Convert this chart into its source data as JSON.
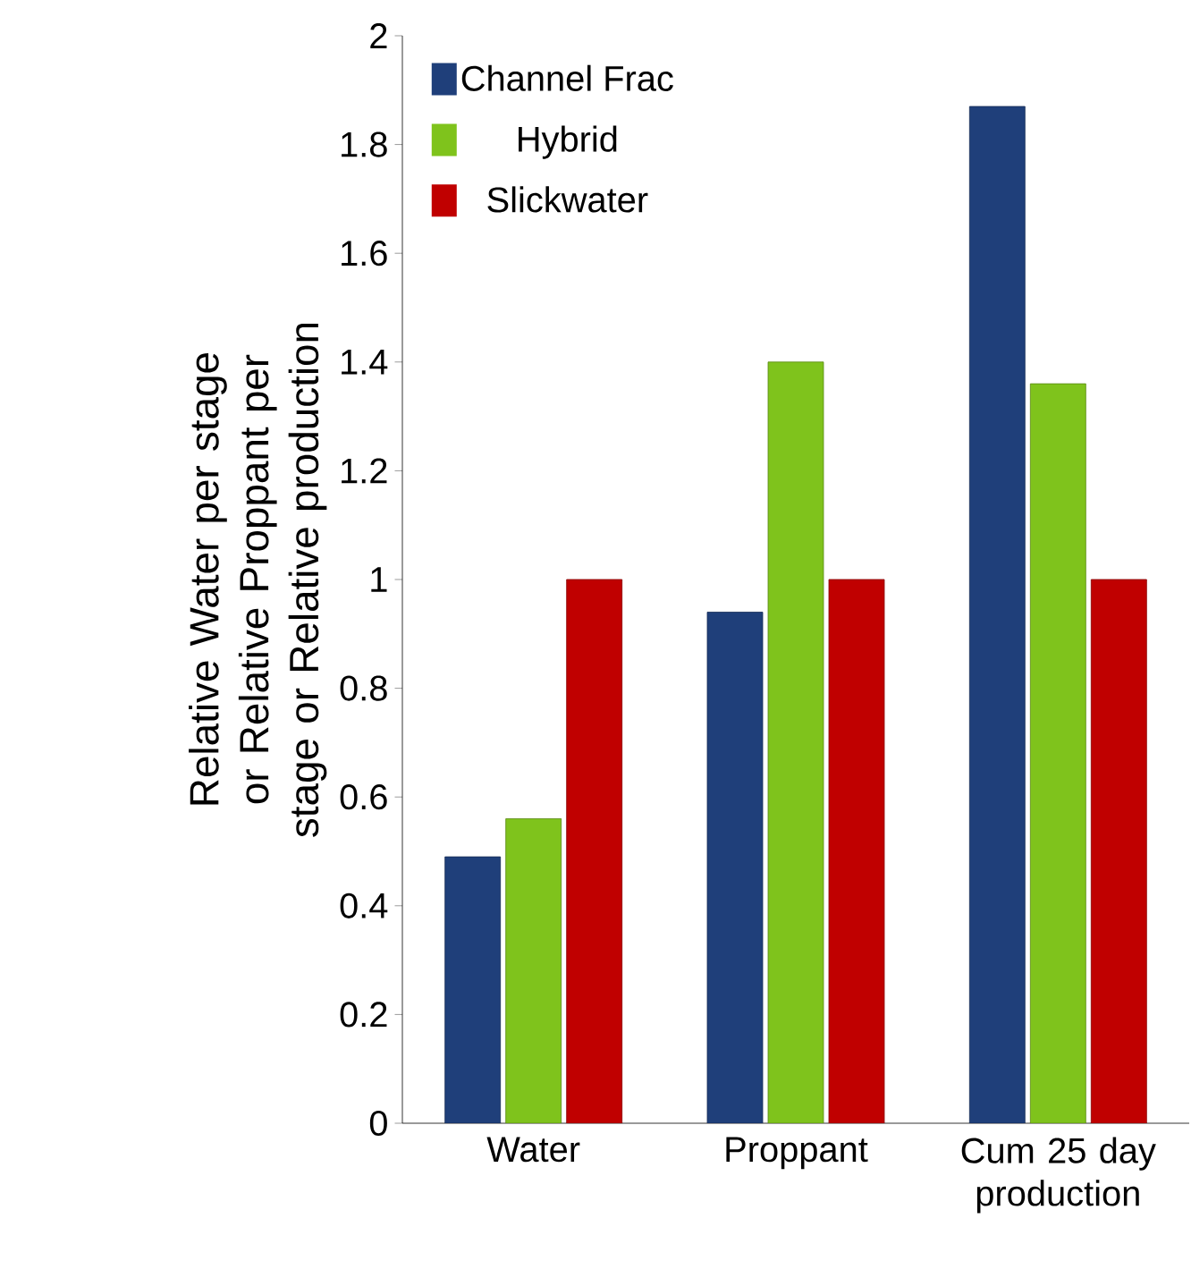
{
  "chart_data": {
    "type": "bar",
    "ylabel": "Relative Water per stage or Relative Proppant per stage or Relative production",
    "categories": [
      "Water",
      "Proppant",
      "Cum 25 day production"
    ],
    "series": [
      {
        "name": "Channel Frac",
        "color": "#1f3f7a",
        "values": [
          0.49,
          0.94,
          1.87
        ]
      },
      {
        "name": "Hybrid",
        "color": "#7fc31c",
        "values": [
          0.56,
          1.4,
          1.36
        ]
      },
      {
        "name": "Slickwater",
        "color": "#c00000",
        "values": [
          1,
          1,
          1
        ]
      }
    ],
    "ylim": [
      0,
      2
    ],
    "yticks": [
      0,
      0.2,
      0.4,
      0.6,
      0.8,
      1,
      1.2,
      1.4,
      1.6,
      1.8,
      2
    ],
    "grid": false,
    "legend": "top left"
  }
}
